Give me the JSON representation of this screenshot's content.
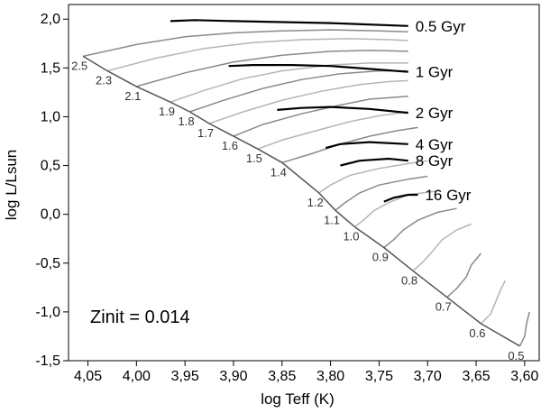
{
  "chart_data": {
    "type": "line",
    "xlabel": "log Teff (K)",
    "ylabel": "log L/Lsun",
    "xlim": [
      4.07,
      3.585
    ],
    "ylim": [
      -1.5,
      2.15
    ],
    "x_ticks": [
      "4,05",
      "4,00",
      "3,95",
      "3,90",
      "3,85",
      "3,80",
      "3,75",
      "3,70",
      "3,65",
      "3,60"
    ],
    "y_ticks": [
      "2,0",
      "1,5",
      "1,0",
      "0,5",
      "0,0",
      "-0,5",
      "-1,0",
      "-1,5"
    ],
    "annotation": "Zinit = 0.014",
    "isochrones": [
      {
        "name": "0.5 Gyr",
        "points": [
          [
            3.965,
            1.98
          ],
          [
            3.94,
            1.99
          ],
          [
            3.9,
            1.98
          ],
          [
            3.85,
            1.97
          ],
          [
            3.8,
            1.96
          ],
          [
            3.72,
            1.93
          ]
        ]
      },
      {
        "name": "1 Gyr",
        "points": [
          [
            3.905,
            1.52
          ],
          [
            3.88,
            1.53
          ],
          [
            3.84,
            1.53
          ],
          [
            3.8,
            1.52
          ],
          [
            3.76,
            1.49
          ],
          [
            3.72,
            1.46
          ]
        ]
      },
      {
        "name": "2 Gyr",
        "points": [
          [
            3.855,
            1.07
          ],
          [
            3.83,
            1.09
          ],
          [
            3.8,
            1.1
          ],
          [
            3.76,
            1.08
          ],
          [
            3.72,
            1.04
          ]
        ]
      },
      {
        "name": "4 Gyr",
        "points": [
          [
            3.805,
            0.68
          ],
          [
            3.79,
            0.72
          ],
          [
            3.76,
            0.74
          ],
          [
            3.72,
            0.72
          ]
        ]
      },
      {
        "name": "8 Gyr",
        "points": [
          [
            3.79,
            0.5
          ],
          [
            3.77,
            0.55
          ],
          [
            3.74,
            0.57
          ],
          [
            3.72,
            0.55
          ]
        ]
      },
      {
        "name": "16 Gyr",
        "points": [
          [
            3.745,
            0.13
          ],
          [
            3.735,
            0.17
          ],
          [
            3.72,
            0.2
          ],
          [
            3.71,
            0.2
          ]
        ]
      }
    ],
    "tracks": [
      {
        "mass": "2.5",
        "points": [
          [
            4.055,
            1.62
          ],
          [
            4.0,
            1.74
          ],
          [
            3.95,
            1.82
          ],
          [
            3.9,
            1.86
          ],
          [
            3.85,
            1.88
          ],
          [
            3.8,
            1.89
          ],
          [
            3.75,
            1.88
          ],
          [
            3.72,
            1.87
          ]
        ]
      },
      {
        "mass": "2.3",
        "points": [
          [
            4.03,
            1.47
          ],
          [
            3.98,
            1.6
          ],
          [
            3.93,
            1.7
          ],
          [
            3.88,
            1.76
          ],
          [
            3.83,
            1.79
          ],
          [
            3.78,
            1.8
          ],
          [
            3.74,
            1.79
          ],
          [
            3.72,
            1.78
          ]
        ]
      },
      {
        "mass": "2.1",
        "points": [
          [
            4.0,
            1.31
          ],
          [
            3.95,
            1.45
          ],
          [
            3.9,
            1.56
          ],
          [
            3.85,
            1.63
          ],
          [
            3.8,
            1.67
          ],
          [
            3.76,
            1.68
          ],
          [
            3.72,
            1.67
          ]
        ]
      },
      {
        "mass": "1.9",
        "points": [
          [
            3.965,
            1.15
          ],
          [
            3.93,
            1.27
          ],
          [
            3.89,
            1.39
          ],
          [
            3.85,
            1.47
          ],
          [
            3.8,
            1.53
          ],
          [
            3.76,
            1.55
          ],
          [
            3.72,
            1.55
          ]
        ]
      },
      {
        "mass": "1.8",
        "points": [
          [
            3.945,
            1.05
          ],
          [
            3.91,
            1.17
          ],
          [
            3.87,
            1.29
          ],
          [
            3.83,
            1.38
          ],
          [
            3.79,
            1.44
          ],
          [
            3.75,
            1.47
          ],
          [
            3.72,
            1.47
          ]
        ]
      },
      {
        "mass": "1.7",
        "points": [
          [
            3.925,
            0.93
          ],
          [
            3.89,
            1.05
          ],
          [
            3.85,
            1.17
          ],
          [
            3.81,
            1.26
          ],
          [
            3.77,
            1.33
          ],
          [
            3.74,
            1.36
          ],
          [
            3.72,
            1.37
          ]
        ]
      },
      {
        "mass": "1.6",
        "points": [
          [
            3.9,
            0.8
          ],
          [
            3.87,
            0.92
          ],
          [
            3.83,
            1.03
          ],
          [
            3.79,
            1.12
          ],
          [
            3.76,
            1.18
          ],
          [
            3.72,
            1.21
          ]
        ]
      },
      {
        "mass": "1.5",
        "points": [
          [
            3.875,
            0.67
          ],
          [
            3.85,
            0.76
          ],
          [
            3.81,
            0.87
          ],
          [
            3.78,
            0.95
          ],
          [
            3.75,
            1.01
          ],
          [
            3.72,
            1.05
          ]
        ]
      },
      {
        "mass": "1.4",
        "points": [
          [
            3.85,
            0.53
          ],
          [
            3.82,
            0.62
          ],
          [
            3.79,
            0.72
          ],
          [
            3.76,
            0.8
          ],
          [
            3.73,
            0.86
          ],
          [
            3.71,
            0.89
          ]
        ]
      },
      {
        "mass": "1.2",
        "points": [
          [
            3.812,
            0.22
          ],
          [
            3.8,
            0.3
          ],
          [
            3.78,
            0.4
          ],
          [
            3.75,
            0.47
          ],
          [
            3.72,
            0.52
          ],
          [
            3.7,
            0.55
          ]
        ]
      },
      {
        "mass": "1.1",
        "points": [
          [
            3.795,
            0.04
          ],
          [
            3.785,
            0.12
          ],
          [
            3.77,
            0.22
          ],
          [
            3.75,
            0.3
          ],
          [
            3.72,
            0.36
          ],
          [
            3.7,
            0.39
          ]
        ]
      },
      {
        "mass": "1.0",
        "points": [
          [
            3.775,
            -0.13
          ],
          [
            3.765,
            -0.05
          ],
          [
            3.755,
            0.04
          ],
          [
            3.74,
            0.12
          ],
          [
            3.72,
            0.2
          ],
          [
            3.69,
            0.24
          ]
        ]
      },
      {
        "mass": "0.9",
        "points": [
          [
            3.745,
            -0.34
          ],
          [
            3.735,
            -0.26
          ],
          [
            3.725,
            -0.16
          ],
          [
            3.71,
            -0.06
          ],
          [
            3.69,
            0.02
          ],
          [
            3.67,
            0.06
          ]
        ]
      },
      {
        "mass": "0.8",
        "points": [
          [
            3.715,
            -0.58
          ],
          [
            3.705,
            -0.49
          ],
          [
            3.695,
            -0.38
          ],
          [
            3.685,
            -0.26
          ],
          [
            3.67,
            -0.16
          ],
          [
            3.655,
            -0.1
          ]
        ]
      },
      {
        "mass": "0.7",
        "points": [
          [
            3.68,
            -0.85
          ],
          [
            3.67,
            -0.76
          ],
          [
            3.66,
            -0.64
          ],
          [
            3.655,
            -0.52
          ],
          [
            3.645,
            -0.4
          ]
        ]
      },
      {
        "mass": "0.6",
        "points": [
          [
            3.645,
            -1.12
          ],
          [
            3.635,
            -1.02
          ],
          [
            3.63,
            -0.9
          ],
          [
            3.625,
            -0.78
          ],
          [
            3.62,
            -0.68
          ]
        ]
      },
      {
        "mass": "0.5",
        "points": [
          [
            3.605,
            -1.35
          ],
          [
            3.6,
            -1.25
          ],
          [
            3.598,
            -1.12
          ],
          [
            3.595,
            -1.0
          ]
        ]
      }
    ],
    "zams": [
      [
        4.055,
        1.62
      ],
      [
        4.03,
        1.47
      ],
      [
        4.0,
        1.31
      ],
      [
        3.965,
        1.15
      ],
      [
        3.945,
        1.05
      ],
      [
        3.925,
        0.93
      ],
      [
        3.9,
        0.8
      ],
      [
        3.875,
        0.67
      ],
      [
        3.85,
        0.53
      ],
      [
        3.812,
        0.22
      ],
      [
        3.795,
        0.04
      ],
      [
        3.775,
        -0.13
      ],
      [
        3.745,
        -0.34
      ],
      [
        3.715,
        -0.58
      ],
      [
        3.68,
        -0.85
      ],
      [
        3.645,
        -1.12
      ],
      [
        3.605,
        -1.35
      ]
    ]
  }
}
